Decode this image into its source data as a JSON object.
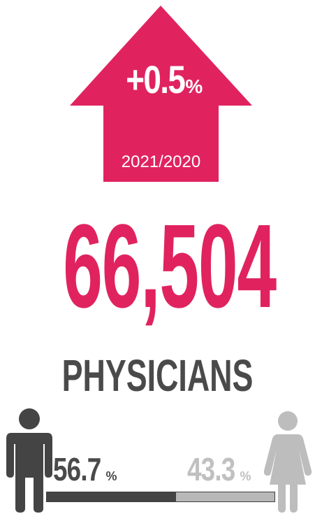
{
  "colors": {
    "accent": "#e0235f",
    "male": "#444444",
    "female": "#b8b8b8",
    "text_dark": "#4a4a4a"
  },
  "change": {
    "value": "+0.5",
    "unit": "%",
    "period": "2021/2020",
    "direction": "up-arrow-icon"
  },
  "total": {
    "count": "66,504",
    "label": "PHYSICIANS"
  },
  "gender_split": {
    "male": {
      "icon": "male-person-icon",
      "percent": "56.7",
      "unit": "%",
      "share": 56.7
    },
    "female": {
      "icon": "female-person-icon",
      "percent": "43.3",
      "unit": "%",
      "share": 43.3
    }
  }
}
